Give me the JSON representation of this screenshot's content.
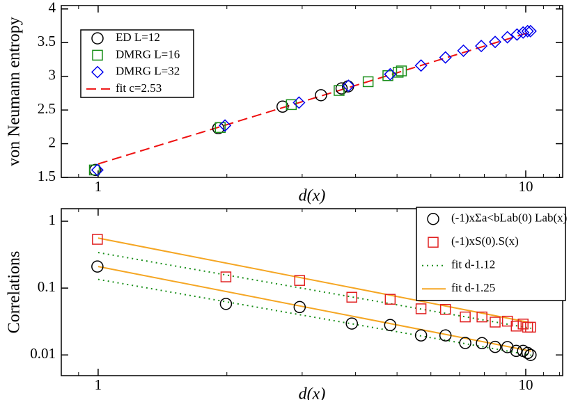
{
  "chart_data": [
    {
      "type": "scatter",
      "xlabel": "d(x)",
      "ylabel": "von Neumann entropy",
      "xlog": true,
      "xlim": [
        0.82,
        12.2
      ],
      "xticks": [
        1,
        10
      ],
      "xminorticks": [
        0.9,
        2,
        3,
        4,
        5,
        6,
        7,
        8,
        9,
        11,
        12
      ],
      "ylim": [
        1.5,
        4.05
      ],
      "yticks": [
        1.5,
        2,
        2.5,
        3,
        3.5,
        4
      ],
      "legend": "upper left",
      "series": [
        {
          "name": "ED L=12",
          "color": "#000000",
          "marker": "circle",
          "x": [
            0.985,
            1.91,
            2.7,
            3.32,
            3.71,
            3.84
          ],
          "values": [
            1.61,
            2.23,
            2.55,
            2.72,
            2.82,
            2.85
          ]
        },
        {
          "name": "DMRG L=16",
          "color": "#1a8f1a",
          "marker": "square",
          "x": [
            0.98,
            1.93,
            2.83,
            3.66,
            4.28,
            4.76,
            5.03,
            5.12
          ],
          "values": [
            1.61,
            2.24,
            2.58,
            2.79,
            2.92,
            3.01,
            3.06,
            3.08
          ]
        },
        {
          "name": "DMRG L=32",
          "color": "#0000ee",
          "marker": "diamond",
          "x": [
            0.996,
            1.98,
            2.95,
            3.85,
            4.82,
            5.69,
            6.49,
            7.15,
            7.87,
            8.48,
            9.06,
            9.54,
            9.86,
            10.1,
            10.26
          ],
          "values": [
            1.61,
            2.27,
            2.61,
            2.86,
            3.03,
            3.16,
            3.28,
            3.38,
            3.45,
            3.51,
            3.58,
            3.62,
            3.65,
            3.67,
            3.67
          ]
        },
        {
          "name": "fit c=2.53",
          "color": "#ee1111",
          "linestyle": "dashed",
          "x": [
            1,
            10.3
          ],
          "values": [
            1.7,
            3.66
          ]
        }
      ]
    },
    {
      "type": "scatter",
      "xlabel": "d(x)",
      "ylabel": "Correlations",
      "xlog": true,
      "ylog": true,
      "xlim": [
        0.82,
        12.2
      ],
      "xticks": [
        1,
        10
      ],
      "xminorticks": [
        0.9,
        2,
        3,
        4,
        5,
        6,
        7,
        8,
        9,
        11,
        12
      ],
      "ylim": [
        0.0049,
        1.54
      ],
      "yticks": [
        0.01,
        0.1,
        1
      ],
      "legend": "upper right",
      "series": [
        {
          "name": "(-1)xΣa<bLab(0) Lab(x)",
          "color": "#000000",
          "marker": "circle",
          "x": [
            0.996,
            1.99,
            2.96,
            3.92,
            4.82,
            5.69,
            6.49,
            7.22,
            7.9,
            8.48,
            9.06,
            9.5,
            9.86,
            10.1,
            10.26
          ],
          "values": [
            0.21,
            0.058,
            0.052,
            0.0295,
            0.028,
            0.0196,
            0.0196,
            0.0151,
            0.015,
            0.0132,
            0.0131,
            0.0115,
            0.0115,
            0.0107,
            0.01
          ]
        },
        {
          "name": "(-1)xS(0).S(x)",
          "color": "#e02020",
          "marker": "square",
          "x": [
            0.996,
            1.99,
            2.96,
            3.92,
            4.82,
            5.69,
            6.49,
            7.22,
            7.9,
            8.48,
            9.06,
            9.5,
            9.86,
            10.1,
            10.26
          ],
          "values": [
            0.536,
            0.147,
            0.13,
            0.073,
            0.068,
            0.049,
            0.048,
            0.037,
            0.037,
            0.031,
            0.032,
            0.027,
            0.029,
            0.026,
            0.026
          ]
        },
        {
          "name": "fit d-1.12",
          "color": "#1a8f1a",
          "linestyle": "dotted",
          "lines": [
            {
              "x": [
                1,
                10.3
              ],
              "values": [
                0.34,
                0.025
              ]
            },
            {
              "x": [
                1,
                10.3
              ],
              "values": [
                0.135,
                0.0099
              ]
            }
          ]
        },
        {
          "name": "fit d-1.25",
          "color": "#f5a623",
          "linestyle": "solid",
          "lines": [
            {
              "x": [
                1,
                10.3
              ],
              "values": [
                0.56,
                0.0303
              ]
            },
            {
              "x": [
                1,
                10.3
              ],
              "values": [
                0.21,
                0.0114
              ]
            }
          ]
        }
      ]
    }
  ]
}
